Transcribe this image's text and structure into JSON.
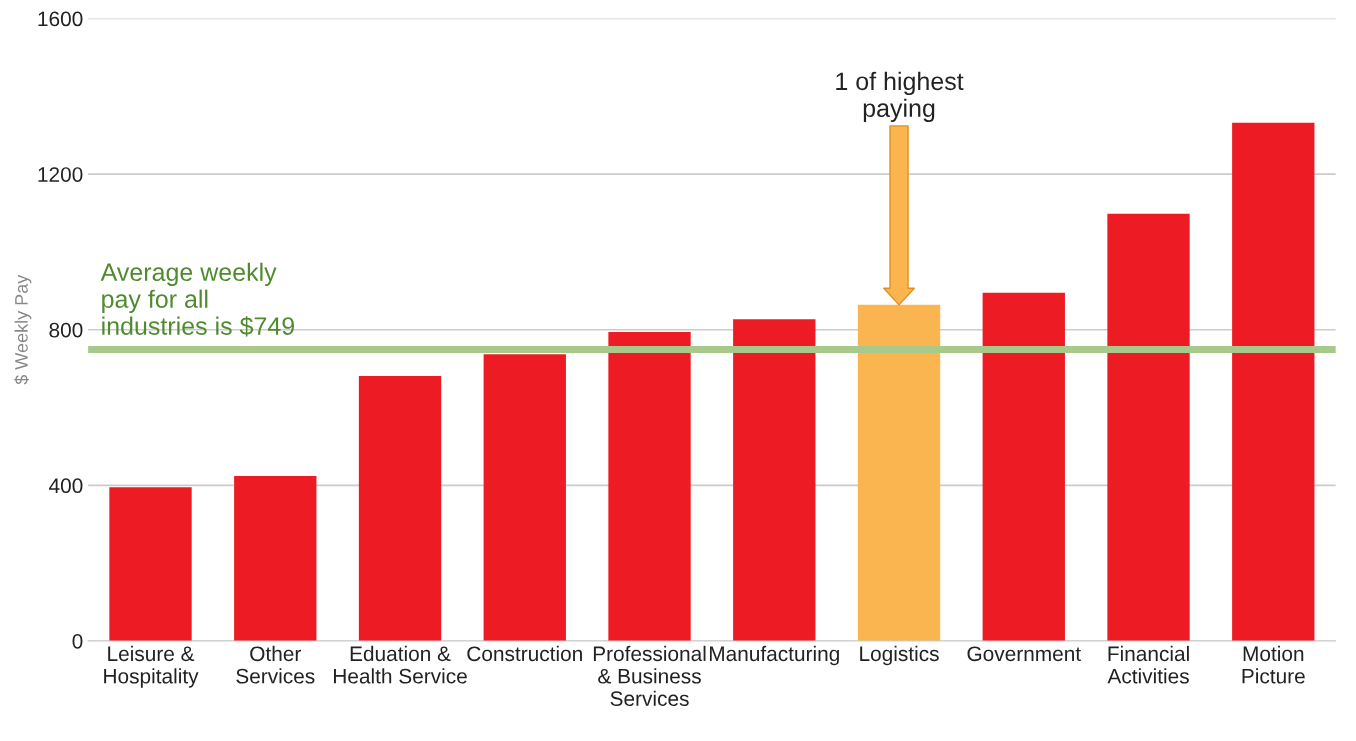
{
  "chart_data": {
    "type": "bar",
    "ylabel": "$ Weekly Pay",
    "categories": [
      "Leisure &\nHospitality",
      "Other\nServices",
      "Eduation &\nHealth Service",
      "Construction",
      "Professional\n& Business\nServices",
      "Manufacturing",
      "Logistics",
      "Government",
      "Financial\nActivities",
      "Motion\nPicture"
    ],
    "values": [
      395,
      424,
      681,
      737,
      794,
      827,
      864,
      895,
      1098,
      1332
    ],
    "colors": [
      "#ed1c24",
      "#ed1c24",
      "#ed1c24",
      "#ed1c24",
      "#ed1c24",
      "#ed1c24",
      "#fbb550",
      "#ed1c24",
      "#ed1c24",
      "#ed1c24"
    ],
    "ylim": [
      0,
      1600
    ],
    "yticks": [
      0,
      400,
      800,
      1200,
      1600
    ],
    "grid": "y",
    "ref_lines": [
      {
        "axis": "y",
        "value": 749,
        "label": "Average weekly\npay for all\nindustries is $749",
        "color": "#a9c98a"
      }
    ],
    "annotations": [
      "1 of highest\npaying"
    ]
  }
}
